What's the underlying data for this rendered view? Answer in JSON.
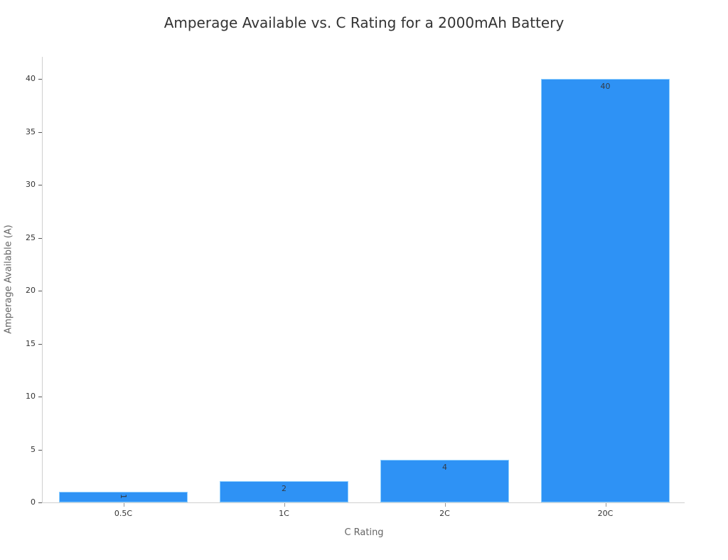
{
  "chart_data": {
    "type": "bar",
    "title": "Amperage Available vs. C Rating for a 2000mAh Battery",
    "xlabel": "C Rating",
    "ylabel": "Amperage Available (A)",
    "categories": [
      "0.5C",
      "1C",
      "2C",
      "20C"
    ],
    "values": [
      1,
      2,
      4,
      40
    ],
    "data_labels": [
      "1",
      "2",
      "4",
      "40"
    ],
    "ylim": [
      0,
      42
    ],
    "yticks": [
      0,
      5,
      10,
      15,
      20,
      25,
      30,
      35,
      40
    ],
    "grid": false,
    "legend": null,
    "bar_color": "#2e92f5"
  }
}
